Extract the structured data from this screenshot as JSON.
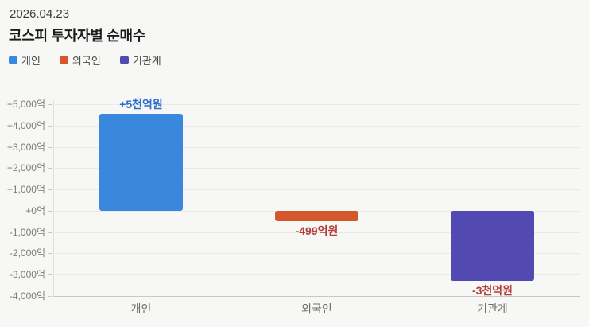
{
  "header": {
    "date": "2026.04.23",
    "title": "코스피 투자자별 순매수"
  },
  "legend": {
    "items": [
      {
        "label": "개인",
        "color": "#3a87de"
      },
      {
        "label": "외국인",
        "color": "#d4582c"
      },
      {
        "label": "기관계",
        "color": "#5349b3"
      }
    ]
  },
  "chart_data": {
    "type": "bar",
    "title": "코스피 투자자별 순매수",
    "unit": "억원",
    "categories": [
      "개인",
      "외국인",
      "기관계"
    ],
    "values": [
      4550,
      -499,
      -3280
    ],
    "value_labels": [
      "+5천억원",
      "-499억원",
      "-3천억원"
    ],
    "bar_colors": [
      "#3a87de",
      "#d4582c",
      "#5349b3"
    ],
    "value_label_colors": [
      "#2a6cd0",
      "#b53d3d",
      "#b53d3d"
    ],
    "xlabel": "",
    "ylabel": "",
    "ylim": [
      -4000,
      5000
    ],
    "yticks": [
      {
        "v": 5000,
        "label": "+5,000억"
      },
      {
        "v": 4000,
        "label": "+4,000억"
      },
      {
        "v": 3000,
        "label": "+3,000억"
      },
      {
        "v": 2000,
        "label": "+2,000억"
      },
      {
        "v": 1000,
        "label": "+1,000억"
      },
      {
        "v": 0,
        "label": "+0억"
      },
      {
        "v": -1000,
        "label": "-1,000억"
      },
      {
        "v": -2000,
        "label": "-2,000억"
      },
      {
        "v": -3000,
        "label": "-3,000억"
      },
      {
        "v": -4000,
        "label": "-4,000억"
      }
    ],
    "grid": true,
    "legend_position": "top-left"
  },
  "colors": {
    "background": "#f7f7f5",
    "grid_line": "#eaeae8",
    "axis_line": "#c8c8c6",
    "y_axis_line": "#dededc",
    "tick_text": "#7b7b7b",
    "category_text": "#6e6e6e",
    "positive_value": "#2a6cd0",
    "negative_value": "#b53d3d"
  }
}
